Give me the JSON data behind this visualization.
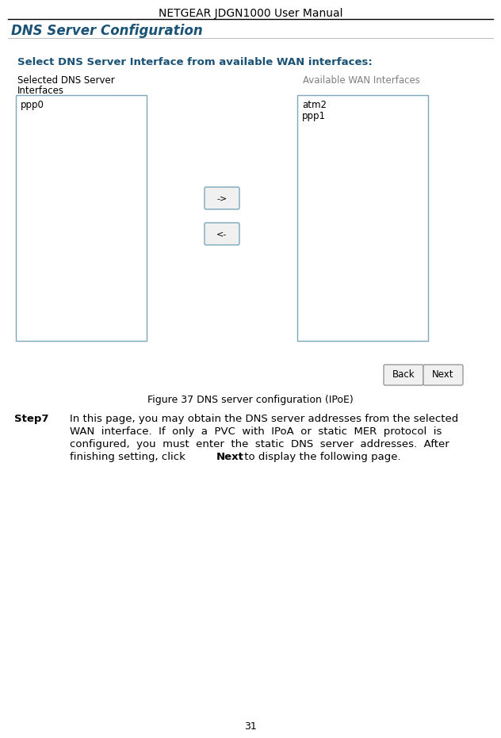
{
  "title": "NETGEAR JDGN1000 User Manual",
  "section_title": "DNS Server Configuration",
  "select_label": "Select DNS Server Interface from available WAN interfaces:",
  "left_box_label_line1": "Selected DNS Server",
  "left_box_label_line2": "Interfaces",
  "right_box_label": "Available WAN Interfaces",
  "left_box_content": "ppp0",
  "right_box_content_line1": "atm2",
  "right_box_content_line2": "ppp1",
  "btn_forward": "->",
  "btn_back": "<-",
  "btn_back_label": "Back",
  "btn_next_label": "Next",
  "figure_caption": "Figure 37 DNS server configuration (IPoE)",
  "step_label": "Step7",
  "step_line1": "In this page, you may obtain the DNS server addresses from the selected",
  "step_line2": "WAN  interface.  If  only  a  PVC  with  IPoA  or  static  MER  protocol  is",
  "step_line3": "configured,  you  must  enter  the  static  DNS  server  addresses.  After",
  "step_line4_pre": "finishing setting, click ",
  "step_line4_bold": "Next",
  "step_line4_post": " to display the following page.",
  "page_number": "31",
  "bg_color": "#ffffff",
  "title_color": "#000000",
  "section_color": "#1a5276",
  "select_color": "#1a5276",
  "left_label_color": "#000000",
  "right_label_color": "#808080",
  "box_border_color": "#7ba7bc",
  "btn_border_color": "#7ba7bc",
  "btn_bg_color": "#f0f0f0",
  "nav_border_color": "#999999",
  "nav_bg_color": "#f0f0f0",
  "content_color": "#000000",
  "caption_color": "#000000",
  "step_label_color": "#000000",
  "step_text_color": "#000000",
  "title_fontsize": 10,
  "section_fontsize": 12,
  "select_fontsize": 9.5,
  "label_fontsize": 8.5,
  "content_fontsize": 8.5,
  "btn_fontsize": 8,
  "nav_fontsize": 8.5,
  "caption_fontsize": 9,
  "step_fontsize": 9.5,
  "page_fontsize": 9
}
